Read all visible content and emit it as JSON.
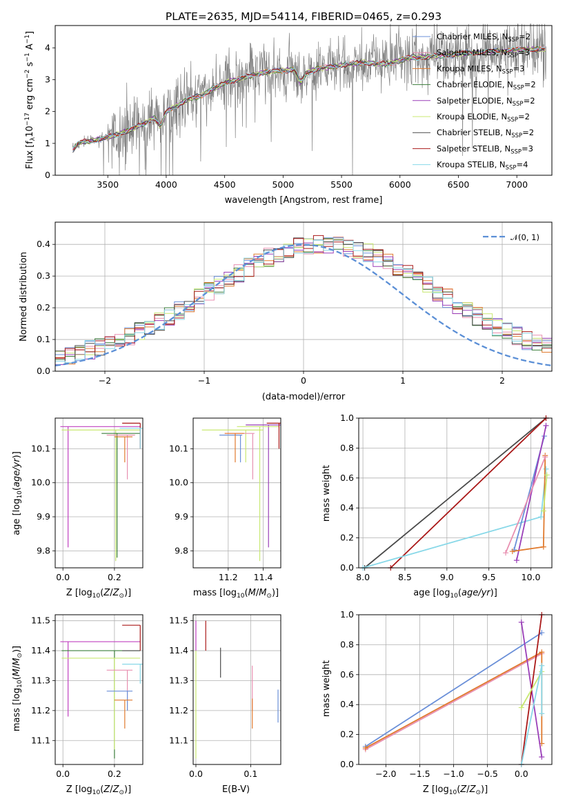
{
  "title": "PLATE=2635, MJD=54114, FIBERID=0465, z=0.293",
  "series_names": [
    "Chabrier MILES, N_SSP=2",
    "Salpeter MILES, N_SSP=3",
    "Kroupa MILES, N_SSP=3",
    "Chabrier ELODIE, N_SSP=2",
    "Salpeter ELODIE, N_SSP=2",
    "Kroupa ELODIE, N_SSP=2",
    "Chabrier STELIB, N_SSP=2",
    "Salpeter STELIB, N_SSP=3",
    "Kroupa STELIB, N_SSP=4"
  ],
  "colors": {
    "data": "#808080",
    "c1": "#6a8fd8",
    "c2": "#e88fb0",
    "c3": "#e07a2e",
    "c4": "#3a7d3a",
    "c5": "#9a3fb8",
    "c6": "#c8e870",
    "c7": "#4a4a4a",
    "c8": "#aa1818",
    "c9": "#88d8e8",
    "gauss": "#5b8fd6",
    "magenta": "#c040c0"
  },
  "chart_data": [
    {
      "type": "line",
      "title": "PLATE=2635, MJD=54114, FIBERID=0465, z=0.293",
      "xlabel": "wavelength [Angstrom, rest frame]",
      "ylabel": "Flux [f_λ 10^-17 erg cm^-2 s^-1 A^-1]",
      "xlim": [
        3050,
        7300
      ],
      "ylim": [
        0,
        4.7
      ],
      "xticks": [
        "3500",
        "4000",
        "4500",
        "5000",
        "5500",
        "6000",
        "6500",
        "7000"
      ],
      "yticks": [
        "0",
        "1",
        "2",
        "3",
        "4"
      ],
      "legend_position": "top-right",
      "legend": [
        {
          "pre": "Chabrier MILES, N",
          "post": "=2"
        },
        {
          "pre": "Salpeter MILES, N",
          "post": "=3"
        },
        {
          "pre": "Kroupa MILES, N",
          "post": "=3"
        },
        {
          "pre": "Chabrier ELODIE, N",
          "post": "=2"
        },
        {
          "pre": "Salpeter ELODIE, N",
          "post": "=2"
        },
        {
          "pre": "Kroupa ELODIE, N",
          "post": "=2"
        },
        {
          "pre": "Chabrier STELIB, N",
          "post": "=2"
        },
        {
          "pre": "Salpeter STELIB, N",
          "post": "=3"
        },
        {
          "pre": "Kroupa STELIB, N",
          "post": "=4"
        }
      ],
      "legend_sub": "SSP",
      "model_continuum_x": [
        3200,
        3250,
        3300,
        3400,
        3500,
        3600,
        3700,
        3800,
        3850,
        3900,
        3950,
        4000,
        4100,
        4200,
        4300,
        4400,
        4500,
        4600,
        4700,
        4800,
        4900,
        5000,
        5100,
        5150,
        5200,
        5300,
        5400,
        5500,
        5600,
        5700,
        5800,
        5900,
        6000,
        6100,
        6200,
        6300,
        6400,
        6500,
        6600,
        6700,
        6800,
        6900,
        7000,
        7100,
        7200
      ],
      "model_continuum_y": [
        0.8,
        1.0,
        1.05,
        1.1,
        1.2,
        1.3,
        1.45,
        1.6,
        1.7,
        1.8,
        1.5,
        2.0,
        2.2,
        2.4,
        2.5,
        2.7,
        2.9,
        3.0,
        3.1,
        3.2,
        3.25,
        3.3,
        3.3,
        2.9,
        3.2,
        3.35,
        3.4,
        3.45,
        3.5,
        3.55,
        3.5,
        3.5,
        3.6,
        3.7,
        3.7,
        3.75,
        3.75,
        3.8,
        3.85,
        3.85,
        3.9,
        3.9,
        3.95,
        3.95,
        3.95
      ]
    },
    {
      "type": "histogram",
      "xlabel": "(data-model)/error",
      "ylabel": "Normed distribution",
      "xlim": [
        -2.5,
        2.5
      ],
      "ylim": [
        0,
        0.47
      ],
      "xticks": [
        "−2",
        "−1",
        "0",
        "1",
        "2"
      ],
      "yticks": [
        "0.0",
        "0.1",
        "0.2",
        "0.3",
        "0.4"
      ],
      "gaussian_label": "𝒩(0, 1)",
      "bin_width": 0.1,
      "approx_shape_center": 0.2,
      "approx_shape_sigma": 1.1
    },
    {
      "type": "errorbar",
      "xlabel_pre": "Z [log",
      "xlabel_sub": "10",
      "xlabel_post": "(Z/Z",
      "xlabel_sun": "⊙",
      "xlabel_end": ")]",
      "ylabel": "age  [log10(age/yr)]",
      "xlim": [
        -0.03,
        0.31
      ],
      "ylim": [
        9.75,
        10.19
      ],
      "xticks": [
        "0.0",
        "0.2"
      ],
      "yticks": [
        "9.8",
        "9.9",
        "10.0",
        "10.1"
      ]
    },
    {
      "type": "errorbar",
      "xlabel": "mass [log10(M/M☉)]",
      "xlim": [
        11.0,
        11.5
      ],
      "ylim": [
        9.75,
        10.19
      ],
      "xticks": [
        "11.2",
        "11.4"
      ],
      "yticks": [
        "9.8",
        "9.9",
        "10.0",
        "10.1"
      ]
    },
    {
      "type": "line",
      "xlabel": "age  [log10(age/yr)]",
      "ylabel": "mass weight",
      "xlim": [
        7.95,
        10.25
      ],
      "ylim": [
        0,
        1
      ],
      "xticks": [
        "8.0",
        "8.5",
        "9.0",
        "9.5",
        "10.0"
      ],
      "yticks": [
        "0.0",
        "0.2",
        "0.4",
        "0.6",
        "0.8",
        "1.0"
      ]
    },
    {
      "type": "errorbar",
      "xlabel": "Z [log10(Z/Z☉)]",
      "ylabel": "mass [log10(M/M☉)]",
      "xlim": [
        -0.03,
        0.31
      ],
      "ylim": [
        11.02,
        11.52
      ],
      "xticks": [
        "0.0",
        "0.2"
      ],
      "yticks": [
        "11.1",
        "11.2",
        "11.3",
        "11.4",
        "11.5"
      ]
    },
    {
      "type": "errorbar",
      "xlabel": "E(B-V)",
      "xlim": [
        -0.005,
        0.155
      ],
      "ylim": [
        11.02,
        11.52
      ],
      "xticks": [
        "0.0",
        "0.1"
      ],
      "yticks": [
        "11.1",
        "11.2",
        "11.3",
        "11.4",
        "11.5"
      ]
    },
    {
      "type": "line",
      "xlabel": "Z [log10(Z/Z☉)]",
      "ylabel": "mass weight",
      "xlim": [
        -2.4,
        0.45
      ],
      "ylim": [
        0,
        1
      ],
      "xticks": [
        "−2.0",
        "−1.5",
        "−1.0",
        "−0.5",
        "0.0"
      ],
      "yticks": [
        "0.0",
        "0.2",
        "0.4",
        "0.6",
        "0.8",
        "1.0"
      ]
    }
  ]
}
